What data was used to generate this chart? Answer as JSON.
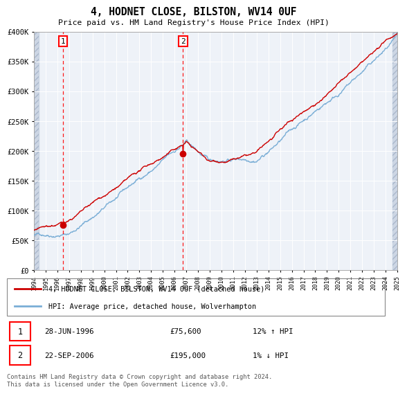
{
  "title": "4, HODNET CLOSE, BILSTON, WV14 0UF",
  "subtitle": "Price paid vs. HM Land Registry's House Price Index (HPI)",
  "legend_line1": "4, HODNET CLOSE, BILSTON, WV14 0UF (detached house)",
  "legend_line2": "HPI: Average price, detached house, Wolverhampton",
  "annotation1_date": "28-JUN-1996",
  "annotation1_price": "£75,600",
  "annotation1_hpi": "12% ↑ HPI",
  "annotation2_date": "22-SEP-2006",
  "annotation2_price": "£195,000",
  "annotation2_hpi": "1% ↓ HPI",
  "footer": "Contains HM Land Registry data © Crown copyright and database right 2024.\nThis data is licensed under the Open Government Licence v3.0.",
  "xmin": 1994,
  "xmax": 2025,
  "ymin": 0,
  "ymax": 400000,
  "sale1_year": 1996.49,
  "sale1_price": 75600,
  "sale2_year": 2006.72,
  "sale2_price": 195000,
  "line_red": "#cc0000",
  "line_blue": "#7aaed6"
}
